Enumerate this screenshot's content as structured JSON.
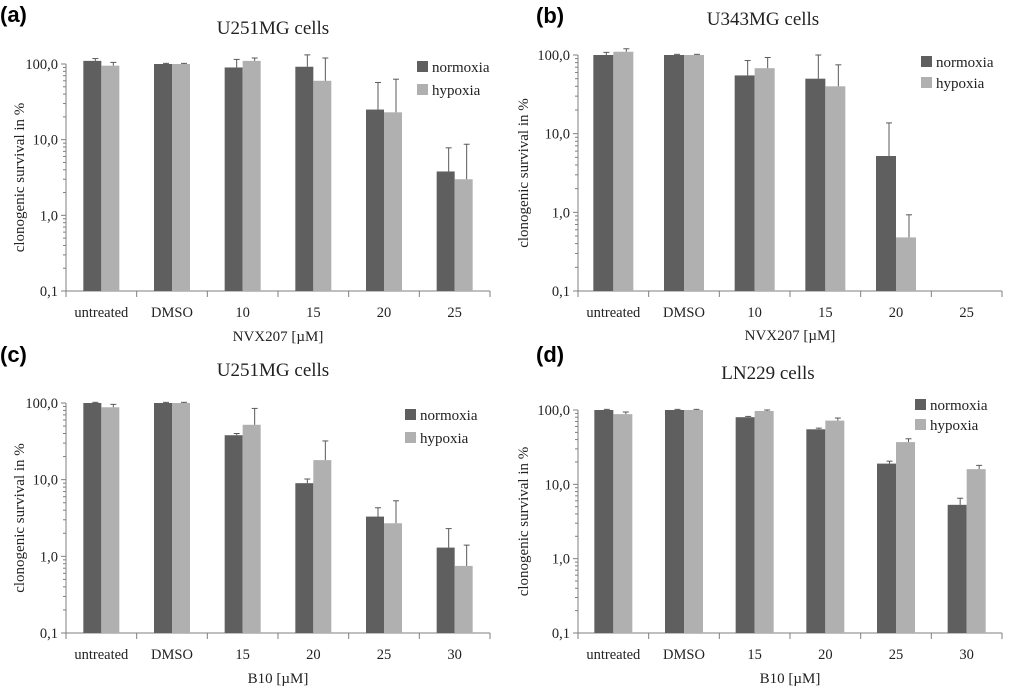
{
  "colors": {
    "normoxia": "#5f5f5f",
    "hypoxia": "#b0b0b0"
  },
  "chart_data": [
    {
      "id": "a",
      "panel_label": "(a)",
      "type": "bar",
      "title": "U251MG cells",
      "xlabel": "NVX207 [µM]",
      "ylabel": "clonogenic survival in %",
      "yscale": "log",
      "ylim": [
        0.1,
        100
      ],
      "yticks": [
        0.1,
        1,
        10,
        100
      ],
      "ytick_labels": [
        "0,1",
        "1,0",
        "10,0",
        "100,0"
      ],
      "legend": "top-right",
      "categories": [
        "untreated",
        "DMSO",
        "10",
        "15",
        "20",
        "25"
      ],
      "series": [
        {
          "name": "normoxia",
          "values": [
            110,
            100,
            90,
            92,
            25,
            3.8
          ],
          "errors": [
            8,
            2,
            25,
            40,
            32,
            4
          ]
        },
        {
          "name": "hypoxia",
          "values": [
            95,
            100,
            110,
            60,
            23,
            3.0
          ],
          "errors": [
            10,
            2,
            10,
            60,
            40,
            5.7
          ]
        }
      ]
    },
    {
      "id": "b",
      "panel_label": "(b)",
      "type": "bar",
      "title": "U343MG cells",
      "xlabel": "NVX207 [µM]",
      "ylabel": "clonogenic survival in %",
      "yscale": "log",
      "ylim": [
        0.1,
        100
      ],
      "yticks": [
        0.1,
        1,
        10,
        100
      ],
      "ytick_labels": [
        "0,1",
        "1,0",
        "10,0",
        "100,0"
      ],
      "legend": "top-right",
      "categories": [
        "untreated",
        "DMSO",
        "10",
        "15",
        "20",
        "25"
      ],
      "series": [
        {
          "name": "normoxia",
          "values": [
            100,
            100,
            55,
            50,
            5.2,
            null
          ],
          "errors": [
            8,
            2,
            30,
            50,
            8.5,
            null
          ]
        },
        {
          "name": "hypoxia",
          "values": [
            110,
            100,
            68,
            40,
            0.48,
            null
          ],
          "errors": [
            10,
            2,
            25,
            35,
            0.45,
            null
          ]
        }
      ]
    },
    {
      "id": "c",
      "panel_label": "(c)",
      "type": "bar",
      "title": "U251MG cells",
      "xlabel": "B10 [µM]",
      "ylabel": "clonogenic survival in %",
      "yscale": "log",
      "ylim": [
        0.1,
        100
      ],
      "yticks": [
        0.1,
        1,
        10,
        100
      ],
      "ytick_labels": [
        "0,1",
        "1,0",
        "10,0",
        "100,0"
      ],
      "legend": "top-right",
      "categories": [
        "untreated",
        "DMSO",
        "15",
        "20",
        "25",
        "30"
      ],
      "series": [
        {
          "name": "normoxia",
          "values": [
            100,
            100,
            38,
            9.0,
            3.3,
            1.3
          ],
          "errors": [
            2,
            2,
            2,
            1.2,
            1.0,
            1.0
          ]
        },
        {
          "name": "hypoxia",
          "values": [
            88,
            100,
            52,
            18,
            2.7,
            0.75
          ],
          "errors": [
            8,
            2,
            33,
            14,
            2.6,
            0.65
          ]
        }
      ]
    },
    {
      "id": "d",
      "panel_label": "(d)",
      "type": "bar",
      "title": "LN229 cells",
      "xlabel": "B10 [µM]",
      "ylabel": "clonogenic survival in %",
      "yscale": "log",
      "ylim": [
        0.1,
        100
      ],
      "yticks": [
        0.1,
        1,
        10,
        100
      ],
      "ytick_labels": [
        "0,1",
        "1,0",
        "10,0",
        "100,0"
      ],
      "legend": "top-right",
      "categories": [
        "untreated",
        "DMSO",
        "15",
        "20",
        "25",
        "30"
      ],
      "series": [
        {
          "name": "normoxia",
          "values": [
            100,
            100,
            80,
            55,
            19,
            5.3
          ],
          "errors": [
            2,
            2,
            2,
            2,
            1.5,
            1.2
          ]
        },
        {
          "name": "hypoxia",
          "values": [
            88,
            100,
            97,
            72,
            37,
            16
          ],
          "errors": [
            6,
            2,
            3,
            6,
            4,
            2
          ]
        }
      ]
    }
  ]
}
